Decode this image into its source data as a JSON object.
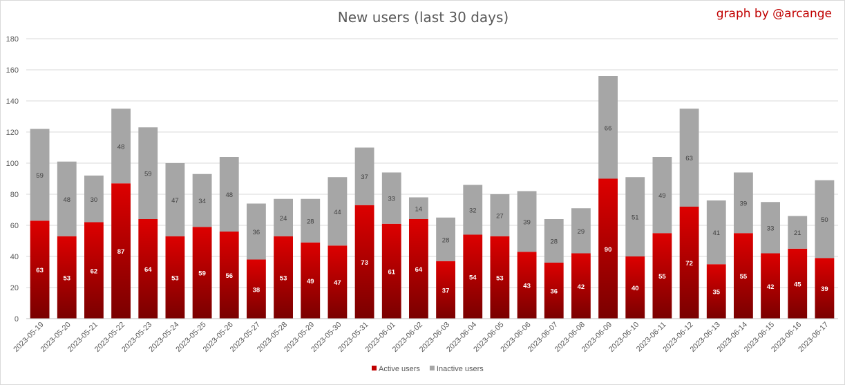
{
  "chart_data": {
    "type": "bar",
    "stacked": true,
    "title": "New users (last 30 days)",
    "credit": "graph by @arcange",
    "categories": [
      "2023-05-19",
      "2023-05-20",
      "2023-05-21",
      "2023-05-22",
      "2023-05-23",
      "2023-05-24",
      "2023-05-25",
      "2023-05-26",
      "2023-05-27",
      "2023-05-28",
      "2023-05-29",
      "2023-05-30",
      "2023-05-31",
      "2023-06-01",
      "2023-06-02",
      "2023-06-03",
      "2023-06-04",
      "2023-06-05",
      "2023-06-06",
      "2023-06-07",
      "2023-06-08",
      "2023-06-09",
      "2023-06-10",
      "2023-06-11",
      "2023-06-12",
      "2023-06-13",
      "2023-06-14",
      "2023-06-15",
      "2023-06-16",
      "2023-06-17"
    ],
    "series": [
      {
        "name": "Active users",
        "color": "#c00000",
        "values": [
          63,
          53,
          62,
          87,
          64,
          53,
          59,
          56,
          38,
          53,
          49,
          47,
          73,
          61,
          64,
          37,
          54,
          53,
          43,
          36,
          42,
          90,
          40,
          55,
          72,
          35,
          55,
          42,
          45,
          39
        ]
      },
      {
        "name": "Inactive users",
        "color": "#a6a6a6",
        "values": [
          59,
          48,
          30,
          48,
          59,
          47,
          34,
          48,
          36,
          24,
          28,
          44,
          37,
          33,
          14,
          28,
          32,
          27,
          39,
          28,
          29,
          66,
          51,
          49,
          63,
          41,
          39,
          33,
          21,
          50
        ]
      }
    ],
    "ylim": [
      0,
      180
    ],
    "yticks": [
      0,
      20,
      40,
      60,
      80,
      100,
      120,
      140,
      160,
      180
    ],
    "grid": true,
    "legend": "bottom"
  }
}
